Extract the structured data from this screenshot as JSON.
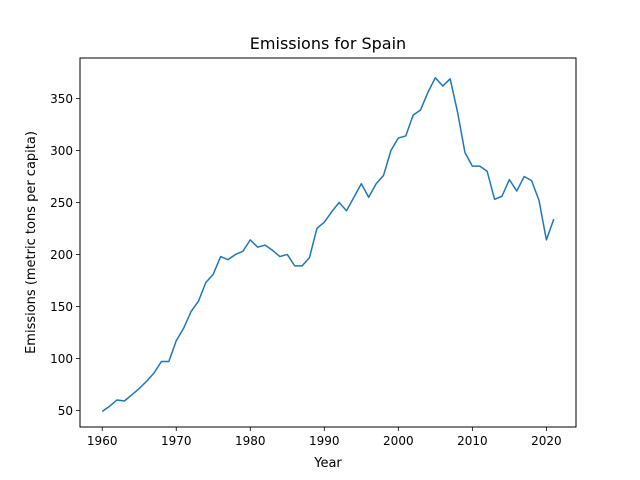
{
  "chart_data": {
    "type": "line",
    "title": "Emissions for Spain",
    "xlabel": "Year",
    "ylabel": "Emissions (metric tons per capita)",
    "xlim": [
      1957,
      2024
    ],
    "ylim": [
      34,
      389
    ],
    "x_ticks": [
      1960,
      1970,
      1980,
      1990,
      2000,
      2010,
      2020
    ],
    "y_ticks": [
      50,
      100,
      150,
      200,
      250,
      300,
      350
    ],
    "grid": false,
    "line_color": "#1f77b4",
    "series": [
      {
        "x": [
          1960,
          1961,
          1962,
          1963,
          1964,
          1965,
          1966,
          1967,
          1968,
          1969,
          1970,
          1971,
          1972,
          1973,
          1974,
          1975,
          1976,
          1977,
          1978,
          1979,
          1980,
          1981,
          1982,
          1983,
          1984,
          1985,
          1986,
          1987,
          1988,
          1989,
          1990,
          1991,
          1992,
          1993,
          1994,
          1995,
          1996,
          1997,
          1998,
          1999,
          2000,
          2001,
          2002,
          2003,
          2004,
          2005,
          2006,
          2007,
          2008,
          2009,
          2010,
          2011,
          2012,
          2013,
          2014,
          2015,
          2016,
          2017,
          2018,
          2019,
          2020,
          2021
        ],
        "values": [
          49,
          54,
          60,
          59,
          65,
          71,
          78,
          86,
          97,
          97,
          117,
          129,
          145,
          155,
          173,
          181,
          198,
          195,
          200,
          203,
          214,
          207,
          209,
          204,
          198,
          200,
          189,
          189,
          197,
          225,
          231,
          241,
          250,
          242,
          255,
          268,
          255,
          268,
          276,
          300,
          312,
          314,
          334,
          339,
          356,
          370,
          362,
          369,
          337,
          298,
          285,
          285,
          280,
          253,
          256,
          272,
          261,
          275,
          271,
          252,
          214,
          234
        ]
      }
    ]
  }
}
